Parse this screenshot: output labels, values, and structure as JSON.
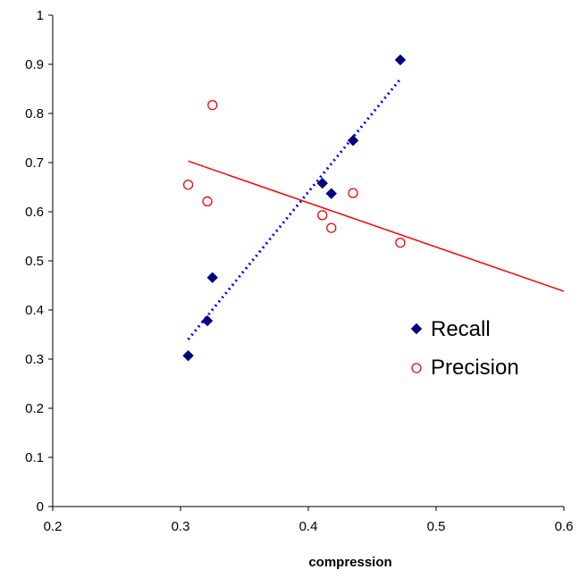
{
  "chart_data": {
    "type": "scatter",
    "xlabel": "compression",
    "ylabel": "",
    "xlim": [
      0.2,
      0.6
    ],
    "ylim": [
      0,
      1
    ],
    "x_ticks": [
      0.2,
      0.3,
      0.4,
      0.5,
      0.6
    ],
    "y_ticks": [
      0,
      0.1,
      0.2,
      0.3,
      0.4,
      0.5,
      0.6,
      0.7,
      0.8,
      0.9,
      1
    ],
    "x_tick_labels": [
      "0.2",
      "0.3",
      "0.4",
      "0.5",
      "0.6"
    ],
    "y_tick_labels": [
      "0",
      "0.1",
      "0.2",
      "0.3",
      "0.4",
      "0.5",
      "0.6",
      "0.7",
      "0.8",
      "0.9",
      "1"
    ],
    "grid": false,
    "legend_position": "right",
    "series": [
      {
        "name": "Recall",
        "marker": "diamond",
        "color": "#000080",
        "points": [
          [
            0.306,
            0.307
          ],
          [
            0.321,
            0.378
          ],
          [
            0.325,
            0.466
          ],
          [
            0.411,
            0.658
          ],
          [
            0.418,
            0.637
          ],
          [
            0.435,
            0.745
          ],
          [
            0.472,
            0.909
          ]
        ],
        "trendline": {
          "style": "dotted",
          "color": "#0000ff",
          "from": [
            0.306,
            0.34
          ],
          "to": [
            0.472,
            0.87
          ]
        }
      },
      {
        "name": "Precision",
        "marker": "circle",
        "color": "#ff0000",
        "points": [
          [
            0.306,
            0.655
          ],
          [
            0.321,
            0.621
          ],
          [
            0.325,
            0.817
          ],
          [
            0.411,
            0.593
          ],
          [
            0.418,
            0.567
          ],
          [
            0.435,
            0.638
          ],
          [
            0.472,
            0.537
          ]
        ],
        "trendline": {
          "style": "solid",
          "color": "#ff0000",
          "from": [
            0.306,
            0.703
          ],
          "to": [
            0.6,
            0.438
          ]
        }
      }
    ]
  }
}
